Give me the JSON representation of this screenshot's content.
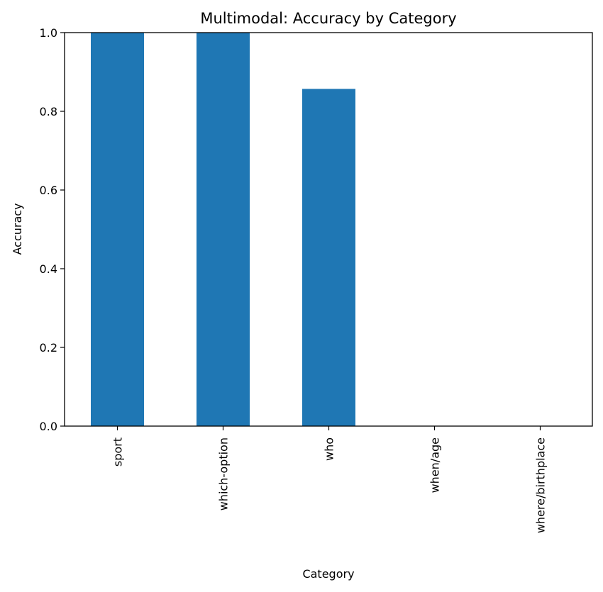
{
  "chart_data": {
    "type": "bar",
    "title": "Multimodal: Accuracy by Category",
    "xlabel": "Category",
    "ylabel": "Accuracy",
    "categories": [
      "sport",
      "which-option",
      "who",
      "when/age",
      "where/birthplace"
    ],
    "values": [
      1.0,
      1.0,
      0.857,
      0.0,
      0.0
    ],
    "ylim": [
      0,
      1.0
    ],
    "yticks": [
      "0.0",
      "0.2",
      "0.4",
      "0.6",
      "0.8",
      "1.0"
    ],
    "ytick_values": [
      0,
      0.2,
      0.4,
      0.6,
      0.8,
      1.0
    ],
    "bar_color": "#1f77b4",
    "grid": false,
    "legend": "none"
  }
}
